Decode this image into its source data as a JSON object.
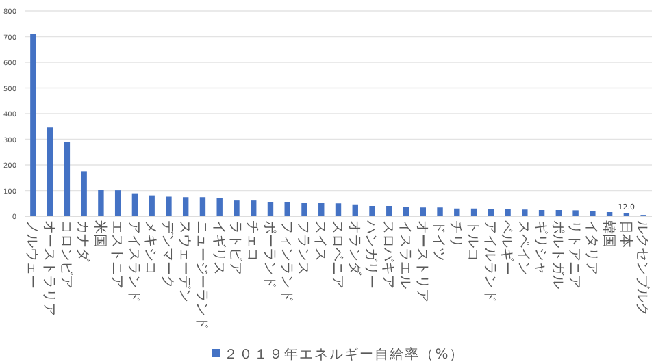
{
  "chart_data": {
    "type": "bar",
    "categories": [
      "ノルウェー",
      "オーストラリア",
      "コロンビア",
      "カナダ",
      "米国",
      "エストニア",
      "アイスランド",
      "メキシコ",
      "デンマーク",
      "スウェーデン",
      "ニュージーランド",
      "イギリス",
      "ラトビア",
      "チェコ",
      "ポーランド",
      "フィンランド",
      "フランス",
      "スイス",
      "スロベニア",
      "オランダ",
      "ハンガリー",
      "スロバキア",
      "イスラエル",
      "オーストリア",
      "ドイツ",
      "チリ",
      "トルコ",
      "アイルランド",
      "ベルギー",
      "スペイン",
      "ギリシャ",
      "ポルトガル",
      "リトアニア",
      "イタリア",
      "韓国",
      "日本",
      "ルクセンブルク"
    ],
    "series": [
      {
        "name": "２０１９年エネルギー自給率（%）",
        "color": "#4472c4",
        "values": [
          711,
          346,
          289,
          175,
          104,
          101,
          89,
          81,
          76,
          74,
          74,
          71,
          61,
          61,
          56,
          56,
          52,
          52,
          50,
          46,
          40,
          40,
          37,
          34,
          34,
          30,
          30,
          29,
          27,
          26,
          24,
          24,
          23,
          20,
          16,
          12.0,
          5
        ],
        "value_labels": [
          null,
          null,
          null,
          null,
          null,
          null,
          null,
          null,
          null,
          null,
          null,
          null,
          null,
          null,
          null,
          null,
          null,
          null,
          null,
          null,
          null,
          null,
          null,
          null,
          null,
          null,
          null,
          null,
          null,
          null,
          null,
          null,
          null,
          null,
          null,
          "12.0",
          null
        ]
      }
    ],
    "ylim": [
      0,
      800
    ],
    "yticks": [
      0,
      100,
      200,
      300,
      400,
      500,
      600,
      700,
      800
    ],
    "grid": "y",
    "legend": "bottom"
  }
}
